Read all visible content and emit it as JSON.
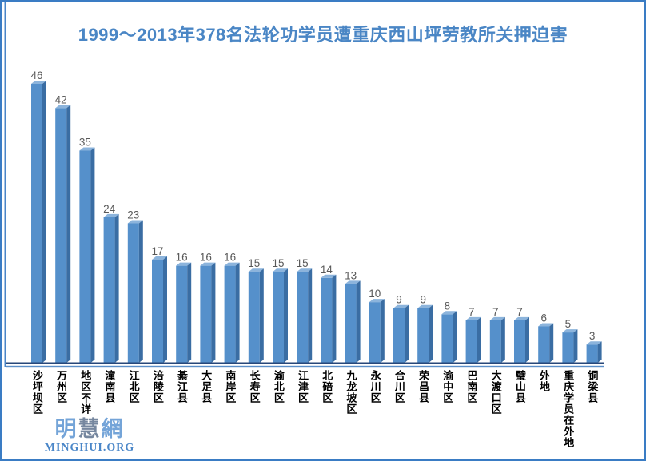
{
  "title": "1999～2013年378名法轮功学员遭重庆西山坪劳教所关押迫害",
  "logo": {
    "chars": [
      "明",
      "慧",
      "網"
    ],
    "char_colors": [
      "#74a4d8",
      "#76879f",
      "#74a4d8"
    ],
    "latin": "MINGHUI.ORG"
  },
  "colors": {
    "frame_border": "#3a7cc4",
    "title": "#4a86c5",
    "bar_front": "#5590cb",
    "bar_top": "#8cb4dc",
    "bar_side": "#3a6da3",
    "axis_line": "#4a86c8",
    "baseline_dark": "#27477a",
    "baseline_light": "#5b8fc9",
    "value_label": "#595959",
    "category_label": "#000000"
  },
  "chart_data": {
    "type": "bar",
    "style": "3d",
    "title": "1999～2013年378名法轮功学员遭重庆西山坪劳教所关押迫害",
    "categories": [
      "沙坪坝区",
      "万州区",
      "地区不详",
      "潼南县",
      "江北区",
      "涪陵区",
      "綦江县",
      "大足县",
      "南岸区",
      "长寿区",
      "渝北区",
      "江津区",
      "北碚区",
      "九龙坡区",
      "永川区",
      "合川区",
      "荣昌县",
      "渝中区",
      "巴南区",
      "大渡口区",
      "璧山县",
      "外地",
      "重庆学员在外地",
      "铜梁县"
    ],
    "values": [
      46,
      42,
      35,
      24,
      23,
      17,
      16,
      16,
      16,
      15,
      15,
      15,
      14,
      13,
      10,
      9,
      9,
      8,
      7,
      7,
      7,
      6,
      5,
      3
    ],
    "total": 378,
    "xlabel": "",
    "ylabel": "",
    "ylim": [
      0,
      48
    ],
    "grid": false,
    "legend": "none",
    "value_labels_shown": true
  }
}
